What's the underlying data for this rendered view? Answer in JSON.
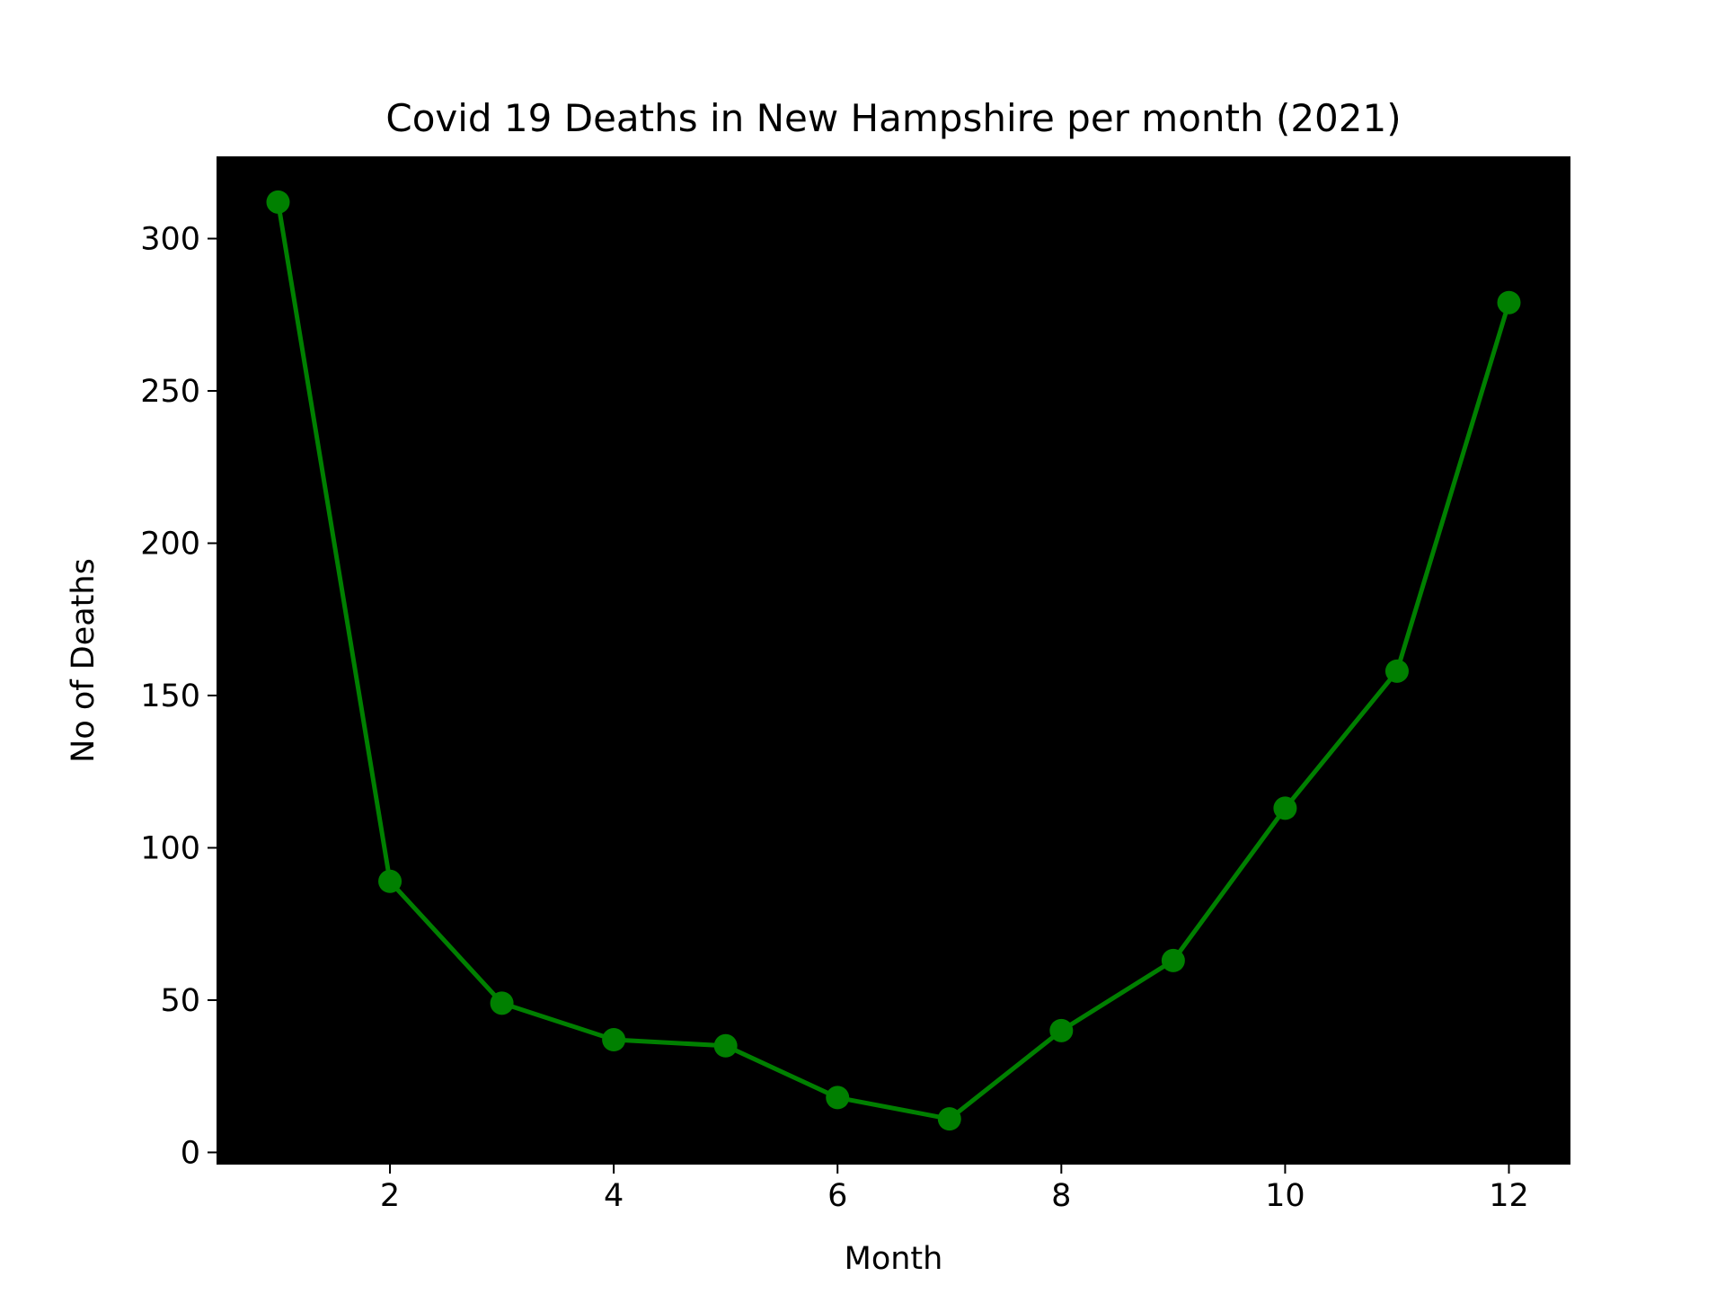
{
  "chart_data": {
    "type": "line",
    "title": "Covid 19 Deaths in New Hampshire per month (2021)",
    "xlabel": "Month",
    "ylabel": "No of Deaths",
    "x": [
      1,
      2,
      3,
      4,
      5,
      6,
      7,
      8,
      9,
      10,
      11,
      12
    ],
    "series": [
      {
        "values": [
          312,
          89,
          49,
          37,
          35,
          18,
          11,
          40,
          63,
          113,
          158,
          279
        ]
      }
    ],
    "xlim": [
      0.45,
      12.55
    ],
    "ylim": [
      -4,
      327
    ],
    "xticks": [
      2,
      4,
      6,
      8,
      10,
      12
    ],
    "yticks": [
      0,
      50,
      100,
      150,
      200,
      250,
      300
    ],
    "grid": false,
    "legend": "none",
    "colors": {
      "plot_background": "#000000",
      "line": "#008000",
      "marker": "#008000",
      "figure_background": "#ffffff"
    }
  }
}
